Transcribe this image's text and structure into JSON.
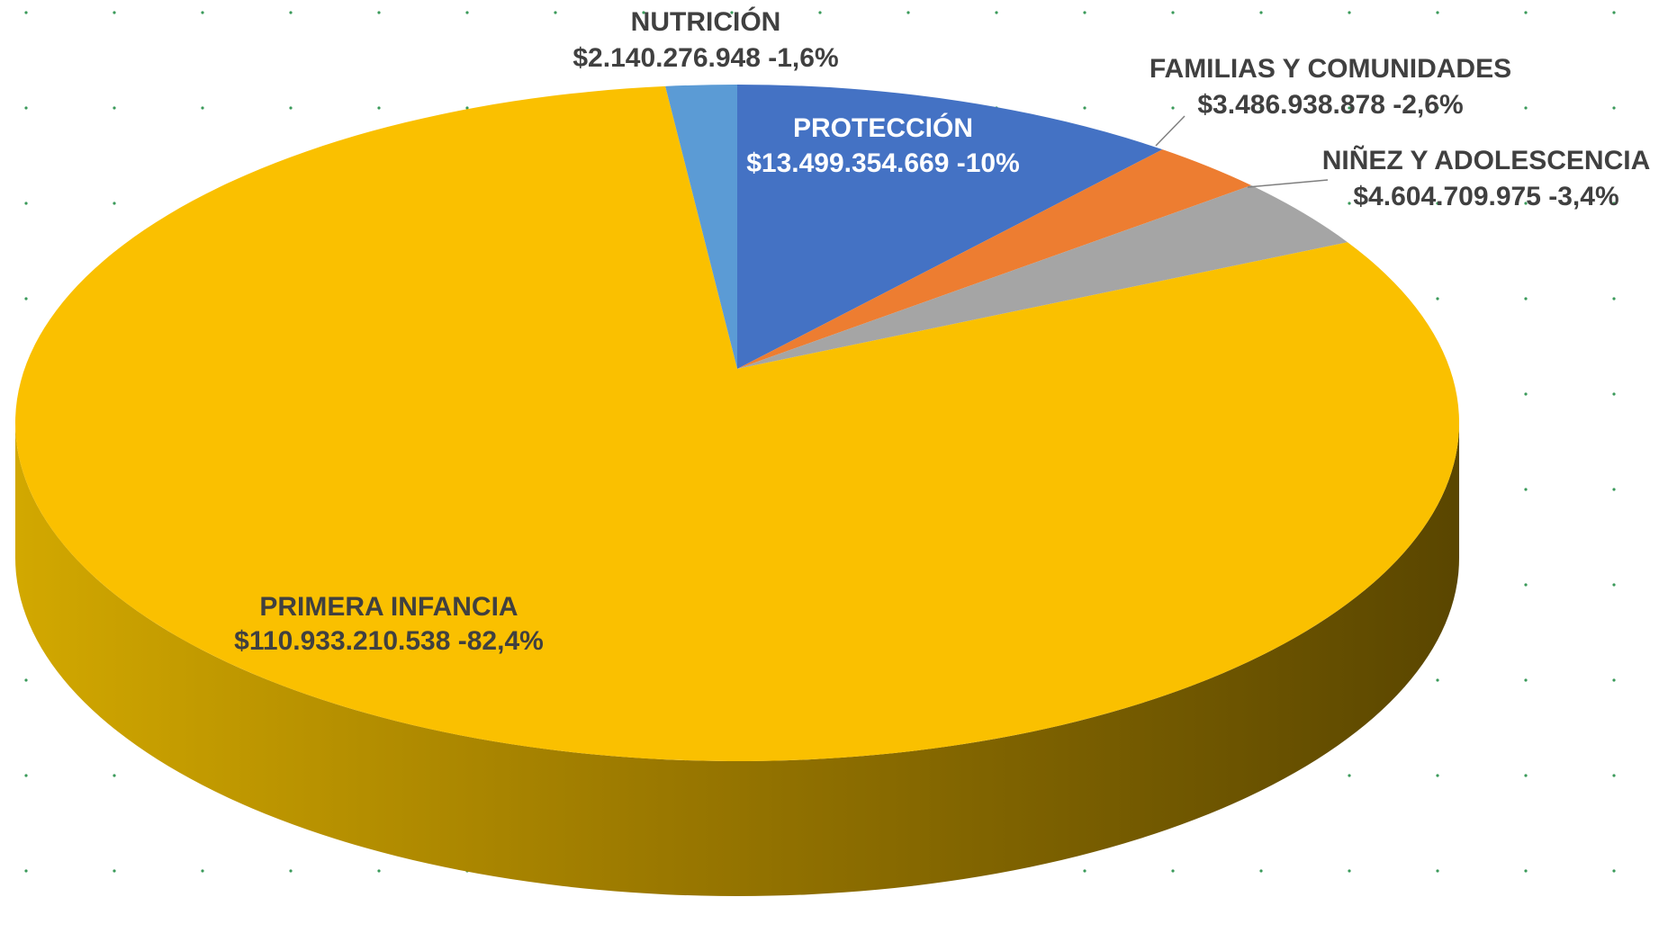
{
  "chart_data": {
    "type": "pie",
    "categories": [
      "NUTRICIÓN",
      "PROTECCIÓN",
      "FAMILIAS Y COMUNIDADES",
      "NIÑEZ Y ADOLESCENCIA",
      "PRIMERA INFANCIA"
    ],
    "values": [
      2140276948,
      13499354669,
      3486938878,
      4604709975,
      110933210538
    ],
    "value_labels": [
      "$2.140.276.948 -1,6%",
      "$13.499.354.669 -10%",
      "$3.486.938.878 -2,6%",
      "$4.604.709.975 -3,4%",
      "$110.933.210.538 -82,4%"
    ],
    "colors": [
      "#5b9bd5",
      "#4472c4",
      "#ed7d31",
      "#a5a5a5",
      "#fac000"
    ]
  }
}
